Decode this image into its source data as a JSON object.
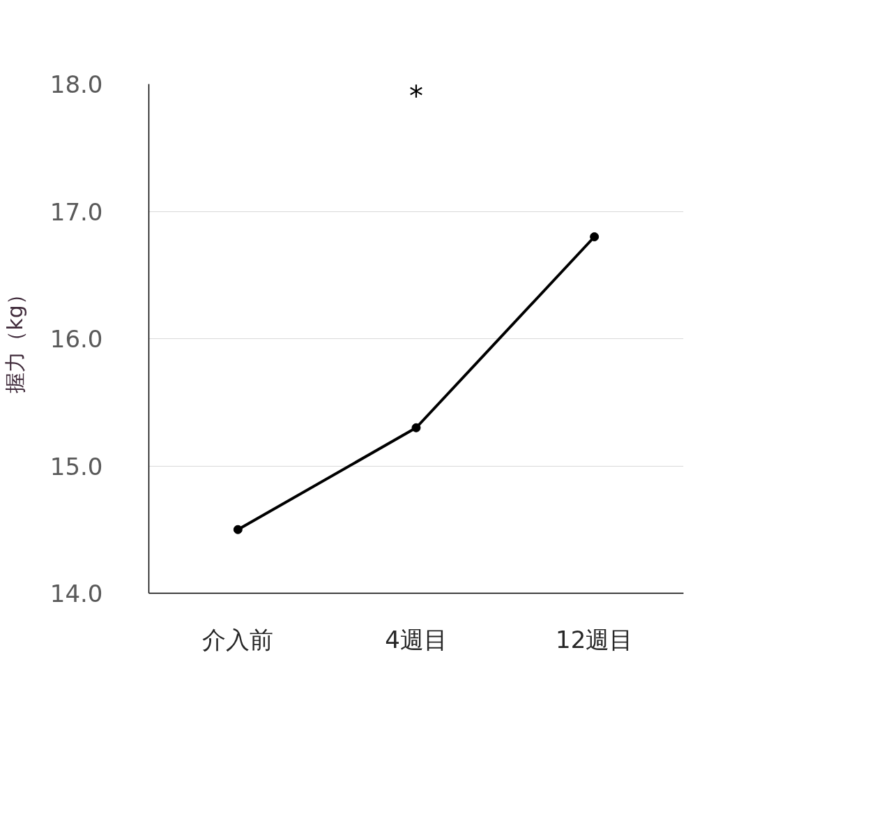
{
  "chart_data": {
    "type": "line",
    "ylabel": "握力（kg）",
    "categories": [
      "介入前",
      "4週目",
      "12週目"
    ],
    "series": [
      {
        "color": "#000000",
        "values": [
          14.5,
          15.3,
          16.8
        ]
      }
    ],
    "ylim": [
      14.0,
      18.0
    ],
    "yticks": [
      {
        "value": 14,
        "label": "14.0"
      },
      {
        "value": 15,
        "label": "15.0"
      },
      {
        "value": 16,
        "label": "16.0"
      },
      {
        "value": 17,
        "label": "17.0"
      },
      {
        "value": 18,
        "label": "18.0"
      }
    ],
    "grid": "y",
    "marker": "circle",
    "line_style": "solid",
    "annotations": [
      "*"
    ]
  }
}
